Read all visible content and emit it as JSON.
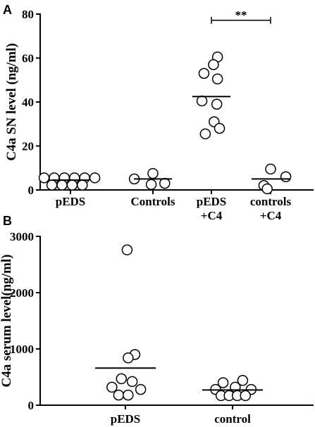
{
  "chart_data": [
    {
      "panel": "A",
      "type": "scatter",
      "ylabel": "C4a SN level  (ng/ml)",
      "ylim": [
        0,
        80
      ],
      "yticks": [
        0,
        20,
        40,
        60,
        80
      ],
      "categories": [
        {
          "lines": [
            "pEDS"
          ]
        },
        {
          "lines": [
            "Controls"
          ]
        },
        {
          "lines": [
            "pEDS",
            "+C4"
          ]
        },
        {
          "lines": [
            "controls",
            "+C4"
          ]
        }
      ],
      "groups": [
        {
          "mean": 4.5,
          "points": [
            {
              "y": 5.5,
              "o": -0.78
            },
            {
              "y": 5.5,
              "o": -0.48
            },
            {
              "y": 5.5,
              "o": -0.18
            },
            {
              "y": 5.5,
              "o": 0.12
            },
            {
              "y": 5.5,
              "o": 0.42
            },
            {
              "y": 5.5,
              "o": 0.72
            },
            {
              "y": 2.2,
              "o": -0.55
            },
            {
              "y": 2.2,
              "o": -0.25
            },
            {
              "y": 2.2,
              "o": 0.05
            },
            {
              "y": 2.2,
              "o": 0.35
            }
          ]
        },
        {
          "mean": 5,
          "points": [
            {
              "y": 7.5,
              "o": 0
            },
            {
              "y": 5,
              "o": -0.55
            },
            {
              "y": 3,
              "o": 0.35
            },
            {
              "y": 2.5,
              "o": -0.05
            }
          ]
        },
        {
          "mean": 42.5,
          "points": [
            {
              "y": 60.5,
              "o": 0.18
            },
            {
              "y": 57,
              "o": 0.06
            },
            {
              "y": 53,
              "o": -0.22
            },
            {
              "y": 50.5,
              "o": 0.18
            },
            {
              "y": 40.5,
              "o": -0.28
            },
            {
              "y": 39,
              "o": 0.16
            },
            {
              "y": 31,
              "o": 0.08
            },
            {
              "y": 28,
              "o": 0.24
            },
            {
              "y": 25.5,
              "o": -0.18
            }
          ]
        },
        {
          "mean": 5,
          "points": [
            {
              "y": 9.5,
              "o": 0
            },
            {
              "y": 6,
              "o": 0.45
            },
            {
              "y": 2,
              "o": -0.2
            },
            {
              "y": 0.5,
              "o": -0.1
            }
          ]
        }
      ],
      "significance": {
        "from": 2,
        "to": 3,
        "label": "**",
        "y": 81
      }
    },
    {
      "panel": "B",
      "type": "scatter",
      "ylabel": "C4a serum level(ng/ml)",
      "ylim": [
        0,
        3000
      ],
      "yticks": [
        0,
        1000,
        2000,
        3000
      ],
      "categories": [
        {
          "lines": [
            "pEDS"
          ]
        },
        {
          "lines": [
            "control"
          ]
        }
      ],
      "groups": [
        {
          "mean": 660,
          "points": [
            {
              "y": 2760,
              "o": 0.05
            },
            {
              "y": 900,
              "o": 0.28
            },
            {
              "y": 840,
              "o": 0.08
            },
            {
              "y": 470,
              "o": -0.12
            },
            {
              "y": 420,
              "o": 0.2
            },
            {
              "y": 320,
              "o": -0.4
            },
            {
              "y": 280,
              "o": 0.45
            },
            {
              "y": 180,
              "o": -0.2
            },
            {
              "y": 180,
              "o": 0.08
            }
          ]
        },
        {
          "mean": 270,
          "points": [
            {
              "y": 440,
              "o": 0.3
            },
            {
              "y": 400,
              "o": -0.28
            },
            {
              "y": 320,
              "o": 0.08
            },
            {
              "y": 280,
              "o": -0.5
            },
            {
              "y": 280,
              "o": 0.55
            },
            {
              "y": 170,
              "o": -0.34
            },
            {
              "y": 170,
              "o": -0.1
            },
            {
              "y": 170,
              "o": 0.14
            },
            {
              "y": 170,
              "o": 0.38
            }
          ]
        }
      ]
    }
  ]
}
